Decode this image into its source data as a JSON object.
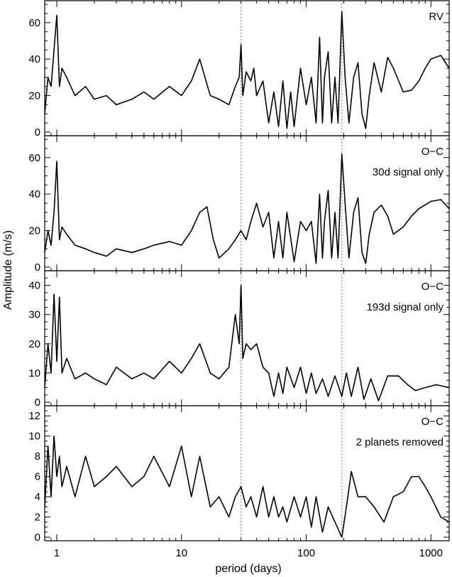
{
  "figure": {
    "xlabel": "period (days)",
    "ylabel": "Amplitude (m/s)",
    "x_tick_labels": [
      "1",
      "10",
      "100",
      "1000"
    ],
    "colors": {
      "line": "#000000",
      "background": "#ffffff",
      "reference_lines": "#555555"
    }
  },
  "chart_data": [
    {
      "type": "line",
      "panel_label": [
        "RV"
      ],
      "xlabel": "period (days)",
      "ylabel": "Amplitude (m/s)",
      "xscale": "log",
      "xlim": [
        0.8,
        1400
      ],
      "ylim": [
        -2,
        72
      ],
      "y_ticks": [
        0,
        20,
        40,
        60
      ],
      "reference_lines_x": [
        30,
        193
      ],
      "series": [
        {
          "x": [
            0.8,
            0.85,
            0.9,
            0.95,
            1.0,
            1.05,
            1.1,
            1.2,
            1.4,
            1.7,
            2,
            2.5,
            3,
            4,
            5,
            6,
            8,
            10,
            12,
            14,
            17,
            20,
            24,
            27,
            29,
            30,
            31,
            33,
            36,
            38,
            40,
            45,
            50,
            55,
            60,
            65,
            70,
            75,
            80,
            90,
            100,
            110,
            120,
            128,
            135,
            140,
            150,
            160,
            170,
            180,
            193,
            205,
            220,
            240,
            260,
            280,
            300,
            320,
            350,
            400,
            450,
            500,
            600,
            700,
            800,
            900,
            1000,
            1200,
            1400
          ],
          "y": [
            10,
            30,
            25,
            45,
            64,
            25,
            35,
            30,
            20,
            25,
            18,
            20,
            15,
            18,
            22,
            18,
            25,
            20,
            28,
            40,
            20,
            18,
            15,
            25,
            30,
            48,
            20,
            33,
            28,
            35,
            20,
            28,
            5,
            22,
            3,
            28,
            2,
            22,
            3,
            35,
            15,
            30,
            5,
            52,
            5,
            30,
            44,
            5,
            30,
            5,
            66,
            30,
            5,
            30,
            38,
            10,
            2,
            20,
            38,
            22,
            41,
            35,
            22,
            23,
            28,
            35,
            40,
            42,
            35
          ]
        }
      ]
    },
    {
      "type": "line",
      "panel_label": [
        "O−C",
        "30d signal only"
      ],
      "xlabel": "period (days)",
      "ylabel": "Amplitude (m/s)",
      "xscale": "log",
      "xlim": [
        0.8,
        1400
      ],
      "ylim": [
        -2,
        72
      ],
      "y_ticks": [
        0,
        20,
        40,
        60
      ],
      "reference_lines_x": [
        30,
        193
      ],
      "series": [
        {
          "x": [
            0.8,
            0.85,
            0.9,
            0.95,
            1.0,
            1.05,
            1.1,
            1.2,
            1.4,
            1.7,
            2,
            2.5,
            3,
            4,
            5,
            6,
            8,
            10,
            12,
            14,
            16,
            18,
            20,
            24,
            27,
            30,
            33,
            36,
            40,
            45,
            50,
            55,
            60,
            65,
            70,
            80,
            90,
            100,
            110,
            120,
            128,
            135,
            140,
            150,
            160,
            170,
            180,
            193,
            205,
            220,
            240,
            260,
            280,
            300,
            320,
            350,
            400,
            450,
            500,
            600,
            700,
            800,
            1000,
            1200,
            1400
          ],
          "y": [
            8,
            20,
            12,
            30,
            58,
            15,
            22,
            18,
            12,
            10,
            8,
            6,
            10,
            8,
            10,
            12,
            14,
            12,
            20,
            30,
            33,
            15,
            5,
            10,
            15,
            20,
            15,
            25,
            35,
            22,
            30,
            5,
            25,
            5,
            30,
            3,
            25,
            20,
            25,
            2,
            40,
            5,
            25,
            42,
            5,
            30,
            5,
            62,
            35,
            5,
            30,
            38,
            8,
            2,
            18,
            30,
            34,
            28,
            18,
            22,
            28,
            32,
            36,
            37,
            32
          ]
        }
      ]
    },
    {
      "type": "line",
      "panel_label": [
        "O−C",
        "193d signal only"
      ],
      "xlabel": "period (days)",
      "ylabel": "Amplitude (m/s)",
      "xscale": "log",
      "xlim": [
        0.8,
        1400
      ],
      "ylim": [
        -1.2,
        45
      ],
      "y_ticks": [
        0,
        10,
        20,
        30,
        40
      ],
      "reference_lines_x": [
        30,
        193
      ],
      "series": [
        {
          "x": [
            0.8,
            0.85,
            0.9,
            0.95,
            1.0,
            1.05,
            1.1,
            1.2,
            1.4,
            1.7,
            2,
            2.5,
            3,
            4,
            5,
            6,
            8,
            10,
            12,
            14,
            17,
            20,
            24,
            27,
            29,
            30,
            31,
            33,
            36,
            40,
            45,
            50,
            55,
            60,
            65,
            70,
            80,
            90,
            100,
            110,
            120,
            135,
            150,
            170,
            193,
            210,
            230,
            260,
            290,
            330,
            380,
            450,
            550,
            650,
            750,
            900,
            1100,
            1400
          ],
          "y": [
            5,
            20,
            10,
            37,
            14,
            36,
            10,
            15,
            8,
            10,
            8,
            6,
            12,
            8,
            10,
            8,
            14,
            10,
            15,
            20,
            10,
            8,
            12,
            30,
            20,
            40,
            15,
            20,
            18,
            20,
            12,
            10,
            2,
            10,
            3,
            12,
            5,
            12,
            3,
            10,
            3,
            8,
            2,
            9,
            2,
            10,
            2,
            12,
            1,
            8,
            0.5,
            9,
            9,
            6,
            4,
            5,
            6,
            5
          ]
        }
      ]
    },
    {
      "type": "line",
      "panel_label": [
        "O−C",
        "2 planets removed"
      ],
      "xlabel": "period (days)",
      "ylabel": "Amplitude (m/s)",
      "xscale": "log",
      "xlim": [
        0.8,
        1400
      ],
      "ylim": [
        -0.35,
        13
      ],
      "y_ticks": [
        0,
        2,
        4,
        6,
        8,
        10,
        12
      ],
      "reference_lines_x": [
        30,
        193
      ],
      "series": [
        {
          "x": [
            0.8,
            0.85,
            0.9,
            0.95,
            1.0,
            1.05,
            1.1,
            1.2,
            1.4,
            1.7,
            2,
            2.5,
            3,
            4,
            5,
            6,
            8,
            10,
            12,
            14,
            17,
            20,
            24,
            27,
            30,
            33,
            36,
            40,
            45,
            50,
            55,
            60,
            65,
            70,
            80,
            90,
            100,
            110,
            120,
            135,
            150,
            170,
            193,
            210,
            230,
            260,
            300,
            350,
            420,
            500,
            600,
            700,
            800,
            900,
            1000,
            1200,
            1400
          ],
          "y": [
            3,
            9,
            4,
            10,
            6,
            8,
            5,
            7,
            4,
            8,
            5,
            6,
            7,
            5,
            6,
            8,
            5,
            9,
            4,
            8,
            3,
            4,
            2,
            4,
            5,
            3,
            4,
            2,
            5,
            2,
            4,
            2,
            3,
            1.5,
            4,
            2,
            4,
            1,
            4,
            0.5,
            3,
            1.5,
            0,
            3,
            6.5,
            4,
            4,
            3,
            1.5,
            4,
            4.5,
            6,
            6,
            5,
            4,
            2,
            1.5
          ]
        }
      ]
    }
  ]
}
